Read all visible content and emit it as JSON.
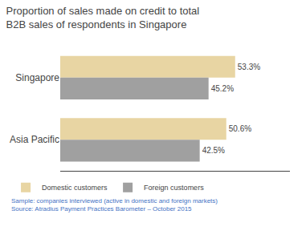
{
  "chart_data": {
    "type": "bar",
    "orientation": "horizontal",
    "title": "Proportion of sales made on credit to total\nB2B sales of respondents in Singapore",
    "categories": [
      "Singapore",
      "Asia Pacific"
    ],
    "series": [
      {
        "name": "Domestic customers",
        "color": "#e8d5a3",
        "values": [
          53.3,
          50.6
        ],
        "value_labels": [
          "53.3%",
          "50.6%"
        ]
      },
      {
        "name": "Foreign customers",
        "color": "#a0a0a0",
        "values": [
          45.2,
          42.5
        ],
        "value_labels": [
          "45.2%",
          "42.5%"
        ]
      }
    ],
    "xlim": [
      0,
      70
    ],
    "data_labels": true,
    "tick_labels": "y",
    "grid": false,
    "legend": "bottom",
    "annotations": [
      "Sample: companies interviewed (active in domestic and foreign markets)",
      "Source: Atradius Payment Practices Barometer – October 2015"
    ]
  }
}
